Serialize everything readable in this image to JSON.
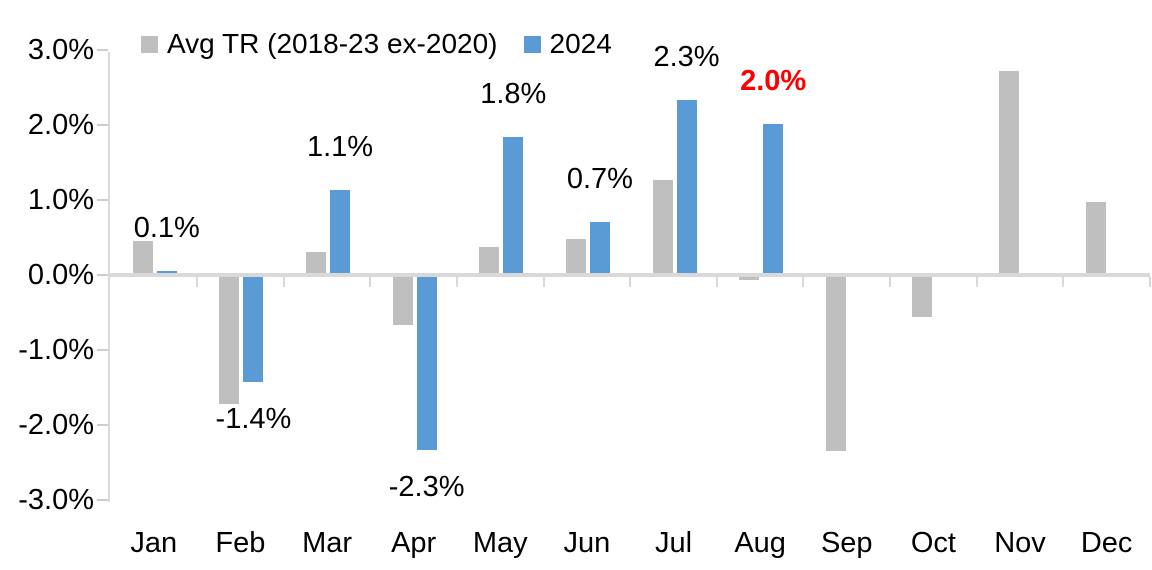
{
  "chart_data": {
    "type": "bar",
    "title": "",
    "xlabel": "",
    "ylabel": "",
    "categories": [
      "Jan",
      "Feb",
      "Mar",
      "Apr",
      "May",
      "Jun",
      "Jul",
      "Aug",
      "Sep",
      "Oct",
      "Nov",
      "Dec"
    ],
    "series": [
      {
        "name": "Avg TR (2018-23 ex-2020)",
        "color": "#bfbfbf",
        "values": [
          0.45,
          -1.72,
          0.31,
          -0.66,
          0.38,
          0.48,
          1.27,
          -0.07,
          -2.35,
          -0.56,
          2.72,
          0.97
        ]
      },
      {
        "name": "2024",
        "color": "#5b9bd5",
        "values": [
          0.06,
          -1.43,
          1.13,
          -2.33,
          1.84,
          0.71,
          2.33,
          2.02,
          null,
          null,
          null,
          null
        ]
      }
    ],
    "data_labels": [
      {
        "category": "Jan",
        "text": "0.1%",
        "color": "#000000",
        "bold": false
      },
      {
        "category": "Feb",
        "text": "-1.4%",
        "color": "#000000",
        "bold": false
      },
      {
        "category": "Mar",
        "text": "1.1%",
        "color": "#000000",
        "bold": false
      },
      {
        "category": "Apr",
        "text": "-2.3%",
        "color": "#000000",
        "bold": false
      },
      {
        "category": "May",
        "text": "1.8%",
        "color": "#000000",
        "bold": false
      },
      {
        "category": "Jun",
        "text": "0.7%",
        "color": "#000000",
        "bold": false
      },
      {
        "category": "Jul",
        "text": "2.3%",
        "color": "#000000",
        "bold": false
      },
      {
        "category": "Aug",
        "text": "2.0%",
        "color": "#ff0000",
        "bold": true
      }
    ],
    "y_axis": {
      "tick_labels": [
        "3.0%",
        "2.0%",
        "1.0%",
        "0.0%",
        "-1.0%",
        "-2.0%",
        "-3.0%"
      ],
      "max": 3.0,
      "min": -3.0,
      "step": 1.0
    },
    "ylim": [
      -3.0,
      3.0
    ],
    "grid": false,
    "legend_position": "top"
  },
  "colors": {
    "axis": "#d9d9d9",
    "tick": "#cdcdcd",
    "text": "#000000",
    "highlight_red": "#ff0000",
    "background": "#ffffff"
  }
}
